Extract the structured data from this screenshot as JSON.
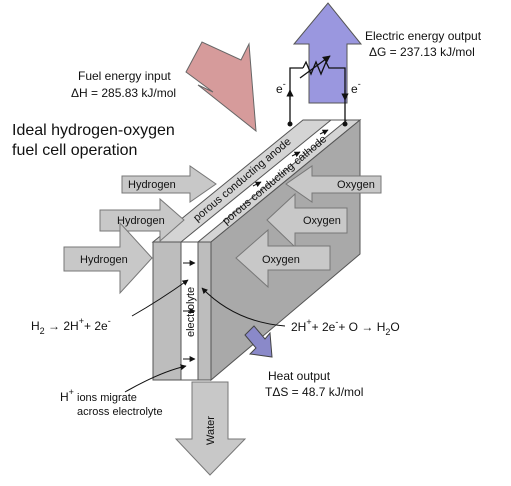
{
  "diagram": {
    "title_line1": "Ideal hydrogen-oxygen",
    "title_line2": "fuel cell operation",
    "fuel_input": {
      "label": "Fuel energy input",
      "value": "ΔH = 285.83 kJ/mol"
    },
    "electric_output": {
      "label": "Electric energy output",
      "value": "ΔG = 237.13 kJ/mol"
    },
    "heat_output": {
      "label": "Heat output",
      "value": "TΔS = 48.7 kJ/mol"
    },
    "electron_left": "e",
    "electron_right": "e",
    "electron_charge": "-",
    "anode_label": "porous conducting anode",
    "cathode_label": "porous conducting cathode",
    "electrolyte_label": "electrolyte",
    "hydrogen_inputs": [
      "Hydrogen",
      "Hydrogen",
      "Hydrogen"
    ],
    "oxygen_inputs": [
      "Oxygen",
      "Oxygen",
      "Oxygen"
    ],
    "water_label": "Water",
    "anode_eq": {
      "h": "H",
      "h_sub": "2",
      "arrow": "→",
      "product": "2H",
      "plus_sup": "+",
      "plus": "+ 2e",
      "minus_sup": "-"
    },
    "cathode_eq": {
      "left": "2H",
      "plus_sup": "+",
      "mid": "+ 2e",
      "minus_sup": "-",
      "tail": "+ O",
      "arrow": "→",
      "h": "H",
      "h_sub": "2",
      "o": "O"
    },
    "ions_note": {
      "h": "H",
      "sup": "+",
      "rest": " ions migrate",
      "line2": "across electrolyte"
    },
    "colors": {
      "block_face": "#bdbdbd",
      "block_top": "#d4d4d4",
      "block_side": "#a9a9a9",
      "input_arrow": "#c8c8c8",
      "fuel_arrow": "#d69b9b",
      "electric_arrow": "#9a97df",
      "heat_arrow": "#8a89c9"
    }
  }
}
